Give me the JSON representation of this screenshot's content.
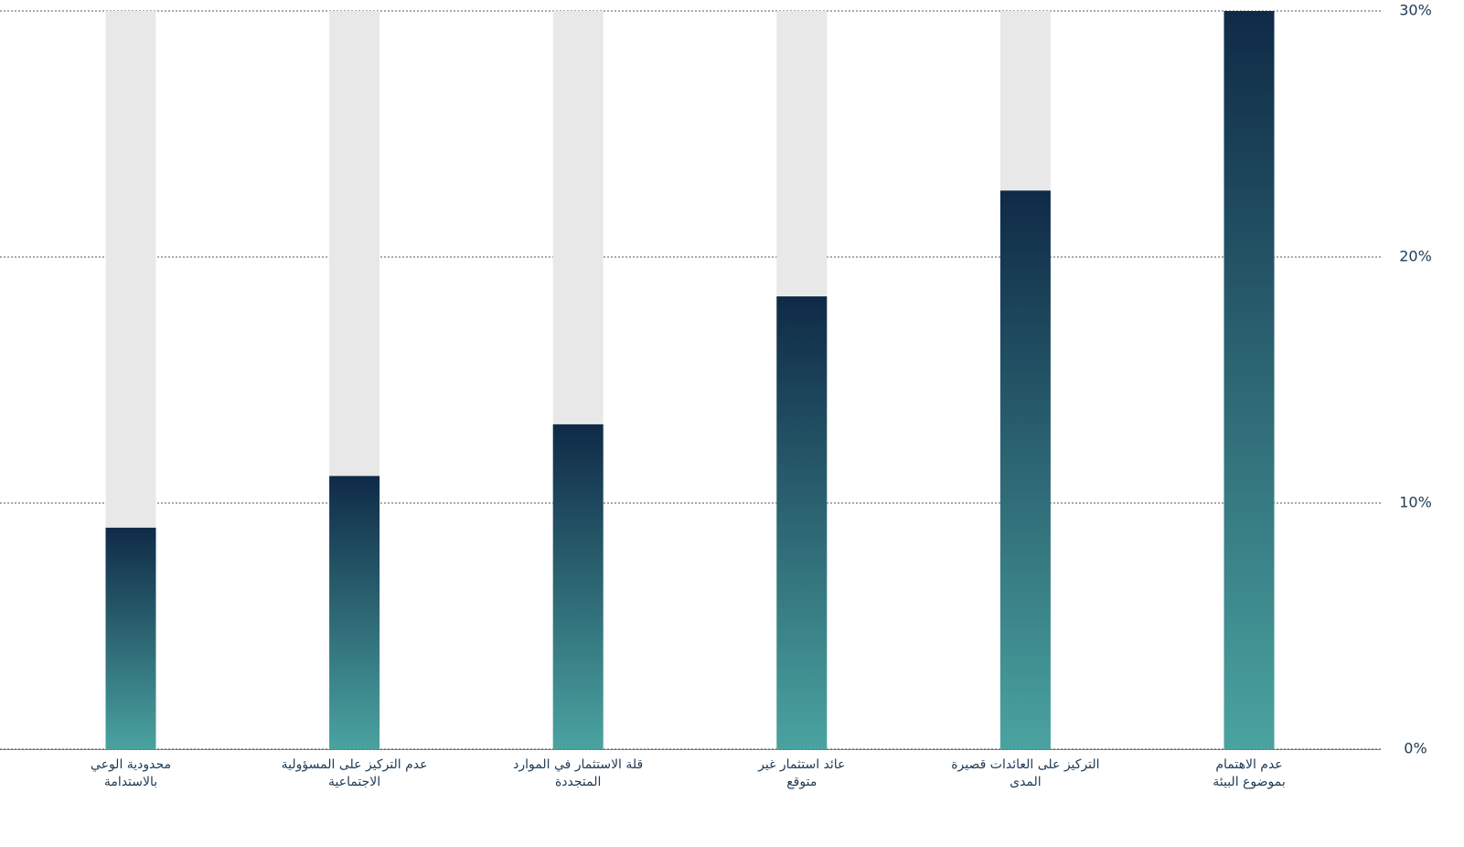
{
  "chart_data": {
    "type": "bar",
    "categories": [
      [
        "محدودية الوعي",
        "بالاستدامة"
      ],
      [
        "عدم التركيز على المسؤولية",
        "الاجتماعية"
      ],
      [
        "قلة الاستثمار في الموارد",
        "المتجددة"
      ],
      [
        "عائد استثمار غير",
        "متوقع"
      ],
      [
        "التركيز على العائدات قصيرة",
        "المدى"
      ],
      [
        "عدم الاهتمام",
        "بموضوع البيئة"
      ]
    ],
    "values": [
      9,
      11.1,
      13.2,
      18.4,
      22.7,
      30
    ],
    "color": "#0f2a47",
    "ylim": [
      0,
      30
    ],
    "yticks": [
      {
        "value": 0,
        "label": "0%"
      },
      {
        "value": 10,
        "label": "10%"
      },
      {
        "value": 20,
        "label": "20%"
      },
      {
        "value": 30,
        "label": "30%"
      }
    ],
    "grid": true
  }
}
